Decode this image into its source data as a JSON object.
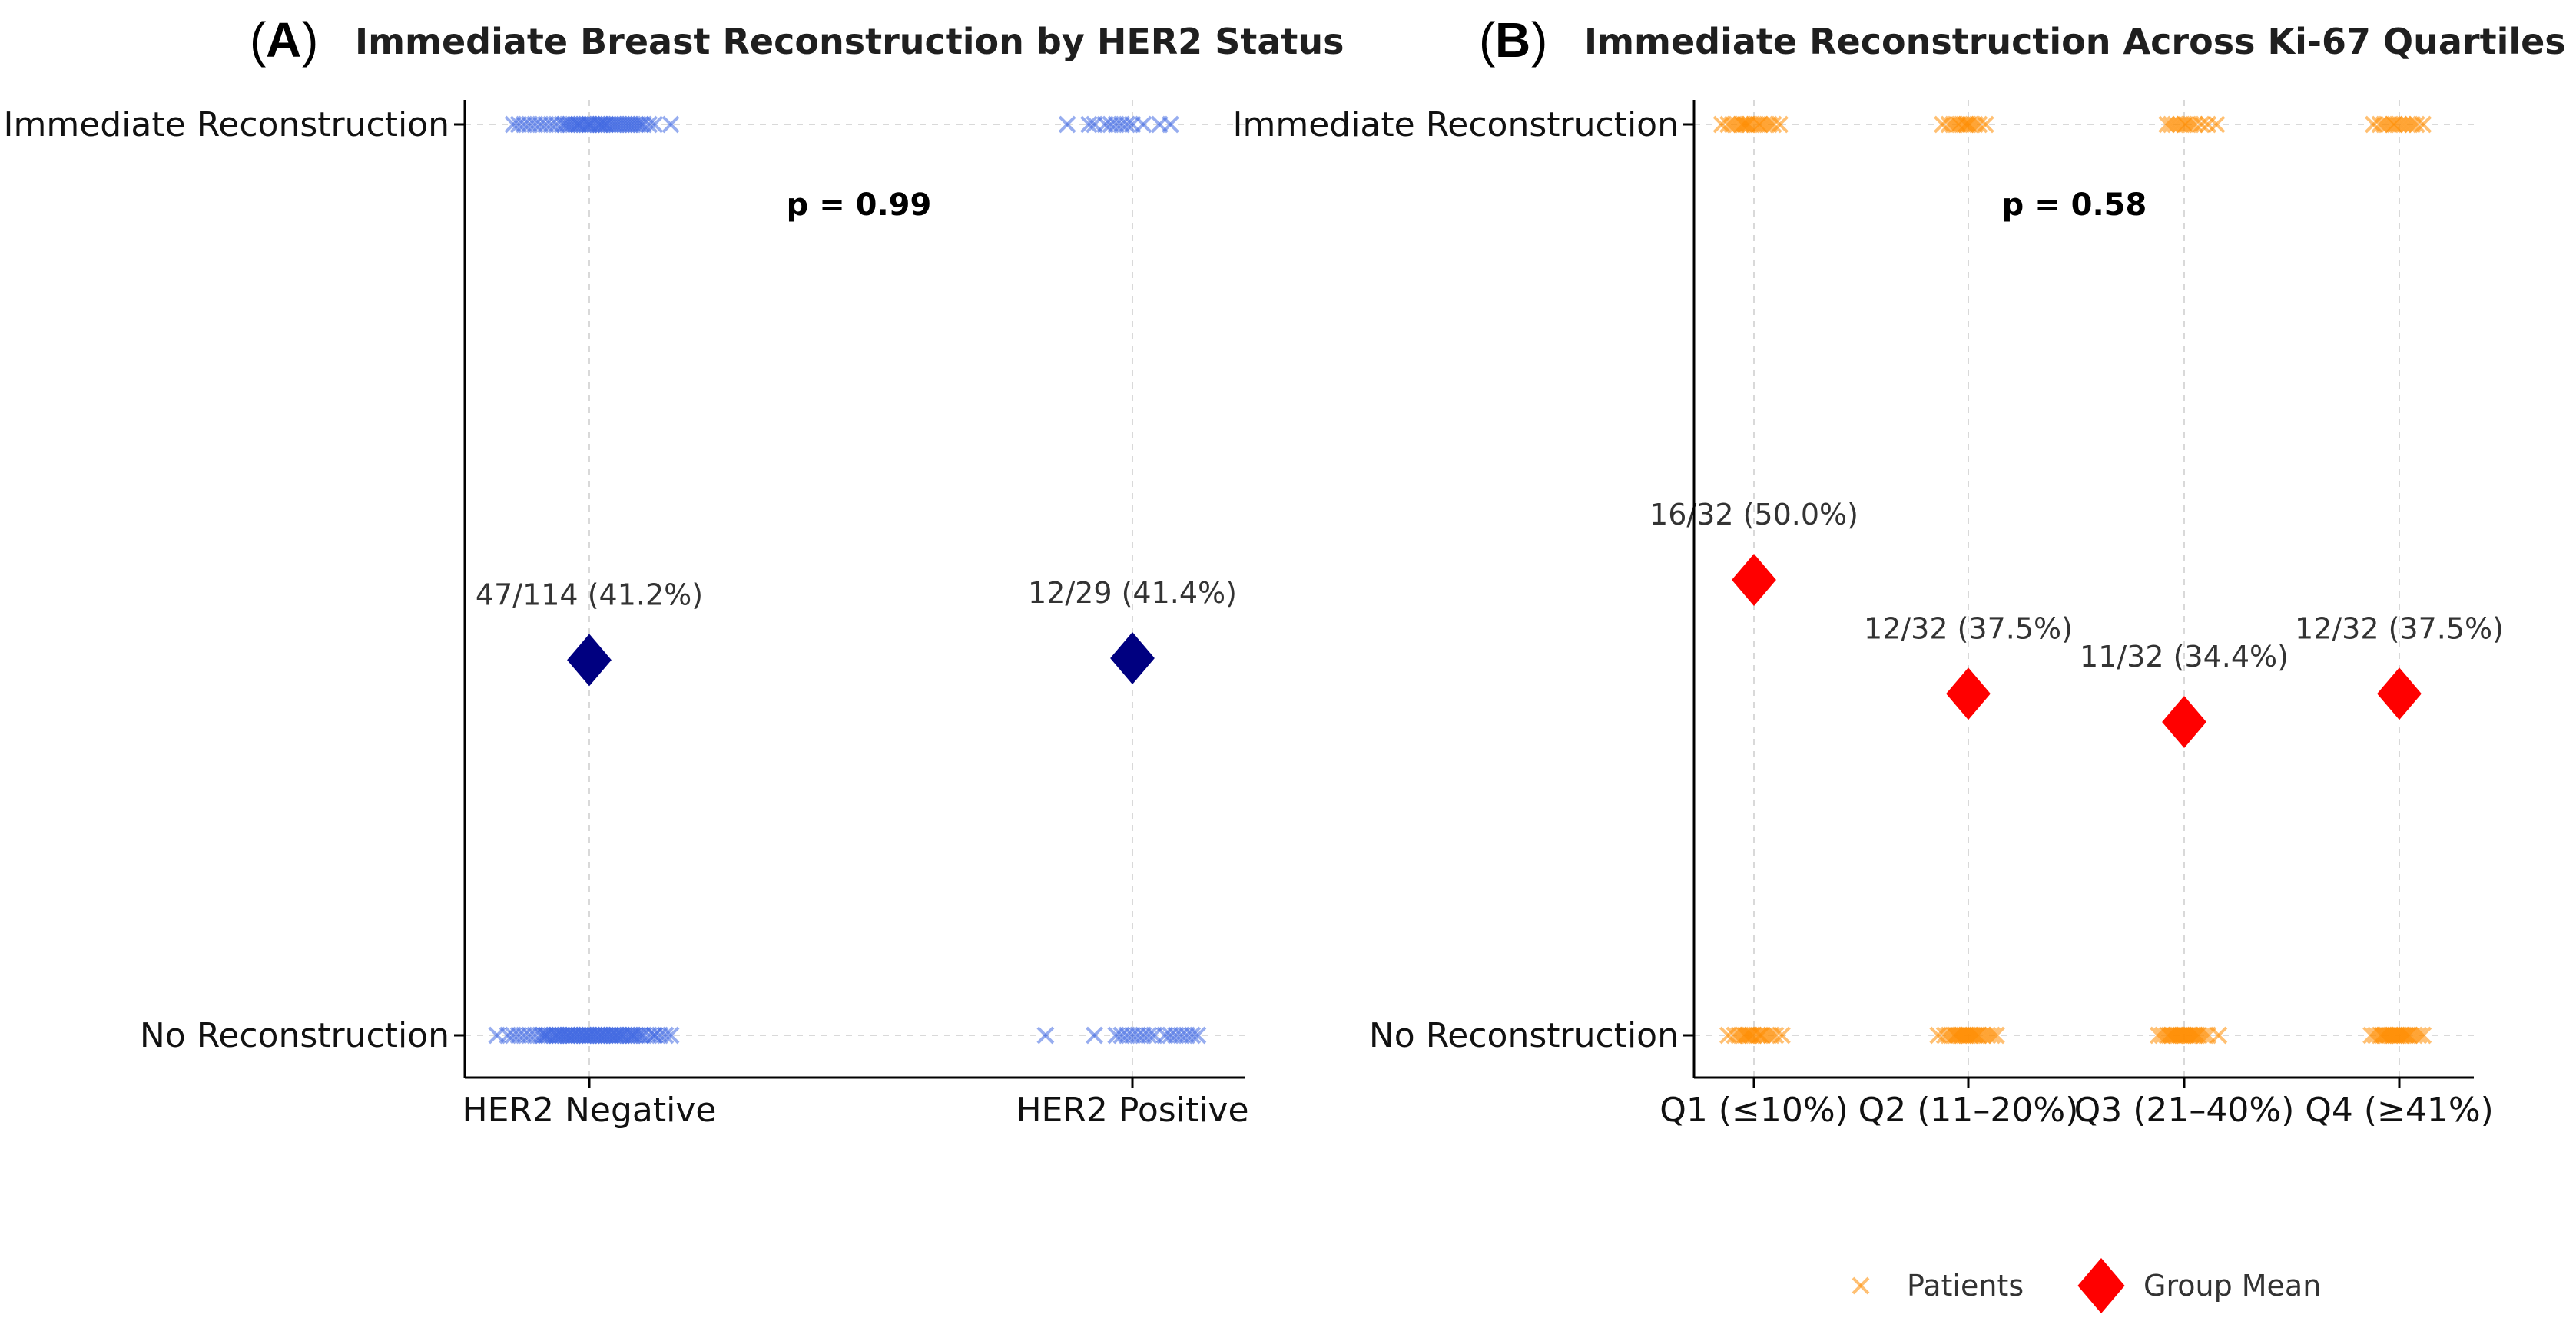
{
  "chart_data": [
    {
      "type": "scatter",
      "panel_label": "A",
      "title": "Immediate Breast Reconstruction by HER2 Status",
      "categories": [
        "HER2 Negative",
        "HER2 Positive"
      ],
      "y_categories": [
        "No Reconstruction",
        "Immediate Reconstruction"
      ],
      "ylim": [
        -0.05,
        1.05
      ],
      "grid": true,
      "p_value_label": "p = 0.99",
      "marker_colors": {
        "patients": "#4169e1",
        "mean": "#000080"
      },
      "patients": [
        {
          "category": "HER2 Negative",
          "reconstructed": {
            "n": 47,
            "x_offsets": [
              -0.14,
              -0.12,
              -0.11,
              -0.1,
              -0.09,
              -0.08,
              -0.07,
              -0.06,
              -0.05,
              -0.045,
              -0.04,
              -0.035,
              -0.03,
              -0.025,
              -0.02,
              -0.015,
              -0.01,
              -0.005,
              0.0,
              0.005,
              0.01,
              0.015,
              0.02,
              0.025,
              0.03,
              0.035,
              0.04,
              0.045,
              0.05,
              0.055,
              0.06,
              0.065,
              0.07,
              0.075,
              0.08,
              0.085,
              0.09,
              0.095,
              0.1,
              0.11,
              0.12,
              0.03,
              0.0,
              -0.02,
              0.02,
              0.15,
              -0.13
            ]
          },
          "not_reconstructed": {
            "n": 67,
            "x_offsets": [
              -0.17,
              -0.15,
              -0.14,
              -0.13,
              -0.12,
              -0.11,
              -0.1,
              -0.09,
              -0.085,
              -0.08,
              -0.075,
              -0.07,
              -0.065,
              -0.06,
              -0.055,
              -0.05,
              -0.045,
              -0.04,
              -0.035,
              -0.03,
              -0.025,
              -0.02,
              -0.015,
              -0.01,
              -0.005,
              0.0,
              0.005,
              0.01,
              0.015,
              0.02,
              0.025,
              0.03,
              0.035,
              0.04,
              0.045,
              0.05,
              0.055,
              0.06,
              0.065,
              0.07,
              0.075,
              0.08,
              0.085,
              0.09,
              0.095,
              0.1,
              0.11,
              0.12,
              0.13,
              0.14,
              0.15,
              -0.04,
              -0.02,
              0.0,
              0.02,
              0.04,
              0.06,
              -0.06,
              0.08,
              -0.08,
              0.01,
              -0.01,
              0.03,
              -0.03,
              0.05,
              -0.05,
              0.12
            ]
          }
        },
        {
          "category": "HER2 Positive",
          "reconstructed": {
            "n": 12,
            "x_offsets": [
              -0.12,
              -0.08,
              -0.07,
              -0.05,
              -0.04,
              -0.03,
              -0.02,
              -0.01,
              0.0,
              0.02,
              0.05,
              0.07
            ]
          },
          "not_reconstructed": {
            "n": 17,
            "x_offsets": [
              -0.16,
              -0.07,
              -0.03,
              -0.02,
              -0.01,
              0.0,
              0.01,
              0.02,
              0.03,
              0.04,
              0.06,
              0.07,
              0.08,
              0.09,
              0.1,
              0.11,
              0.12
            ]
          }
        }
      ],
      "group_means": [
        {
          "category": "HER2 Negative",
          "value": 0.412,
          "label": "47/114 (41.2%)"
        },
        {
          "category": "HER2 Positive",
          "value": 0.414,
          "label": "12/29 (41.4%)"
        }
      ]
    },
    {
      "type": "scatter",
      "panel_label": "B",
      "title": "Immediate Reconstruction Across Ki-67 Quartiles",
      "categories": [
        "Q1 (≤10%)",
        "Q2 (11–20%)",
        "Q3 (21–40%)",
        "Q4 (≥41%)"
      ],
      "y_categories": [
        "No Reconstruction",
        "Immediate Reconstruction"
      ],
      "ylim": [
        -0.05,
        1.05
      ],
      "grid": true,
      "p_value_label": "p = 0.58",
      "marker_colors": {
        "patients": "#ff8c00",
        "mean": "#ff0000"
      },
      "patients": [
        {
          "category": "Q1 (≤10%)",
          "reconstructed": {
            "n": 16,
            "x_offsets": [
              -0.15,
              -0.12,
              -0.1,
              -0.08,
              -0.06,
              -0.05,
              -0.04,
              -0.03,
              -0.02,
              0.0,
              0.02,
              0.03,
              0.05,
              0.07,
              0.09,
              0.12
            ]
          },
          "not_reconstructed": {
            "n": 16,
            "x_offsets": [
              -0.12,
              -0.09,
              -0.07,
              -0.05,
              -0.04,
              -0.03,
              -0.02,
              -0.01,
              0.0,
              0.02,
              0.03,
              0.04,
              0.06,
              0.08,
              0.1,
              0.13
            ]
          }
        },
        {
          "category": "Q2 (11–20%)",
          "reconstructed": {
            "n": 12,
            "x_offsets": [
              -0.12,
              -0.09,
              -0.07,
              -0.05,
              -0.04,
              -0.02,
              -0.01,
              0.0,
              0.01,
              0.03,
              0.05,
              0.08
            ]
          },
          "not_reconstructed": {
            "n": 20,
            "x_offsets": [
              -0.14,
              -0.11,
              -0.09,
              -0.07,
              -0.06,
              -0.05,
              -0.04,
              -0.03,
              -0.02,
              -0.01,
              0.0,
              0.01,
              0.02,
              0.03,
              0.04,
              0.05,
              0.07,
              0.09,
              0.11,
              0.13
            ]
          }
        },
        {
          "category": "Q3 (21–40%)",
          "reconstructed": {
            "n": 11,
            "x_offsets": [
              -0.08,
              -0.06,
              -0.04,
              -0.02,
              0.0,
              0.01,
              0.03,
              0.05,
              0.08,
              0.11,
              0.15
            ]
          },
          "not_reconstructed": {
            "n": 21,
            "x_offsets": [
              -0.12,
              -0.1,
              -0.08,
              -0.07,
              -0.06,
              -0.05,
              -0.04,
              -0.03,
              -0.02,
              -0.01,
              0.0,
              0.01,
              0.02,
              0.03,
              0.04,
              0.05,
              0.06,
              0.07,
              0.09,
              0.11,
              0.16
            ]
          }
        },
        {
          "category": "Q4 (≥41%)",
          "reconstructed": {
            "n": 12,
            "x_offsets": [
              -0.12,
              -0.09,
              -0.07,
              -0.05,
              -0.03,
              -0.02,
              0.0,
              0.02,
              0.04,
              0.06,
              0.08,
              0.11
            ]
          },
          "not_reconstructed": {
            "n": 20,
            "x_offsets": [
              -0.13,
              -0.11,
              -0.09,
              -0.08,
              -0.07,
              -0.06,
              -0.05,
              -0.04,
              -0.03,
              -0.02,
              -0.01,
              0.0,
              0.01,
              0.02,
              0.03,
              0.04,
              0.05,
              0.07,
              0.09,
              0.11
            ]
          }
        }
      ],
      "group_means": [
        {
          "category": "Q1 (≤10%)",
          "value": 0.5,
          "label": "16/32 (50.0%)"
        },
        {
          "category": "Q2 (11–20%)",
          "value": 0.375,
          "label": "12/32 (37.5%)"
        },
        {
          "category": "Q3 (21–40%)",
          "value": 0.344,
          "label": "11/32 (34.4%)"
        },
        {
          "category": "Q4 (≥41%)",
          "value": 0.375,
          "label": "12/32 (37.5%)"
        }
      ]
    }
  ],
  "legend": {
    "placement": "bottom-right",
    "items": [
      {
        "label": "Patients",
        "marker": "x",
        "color": "#ff8c00"
      },
      {
        "label": "Group Mean",
        "marker": "diamond",
        "color": "#ff0000"
      }
    ]
  }
}
